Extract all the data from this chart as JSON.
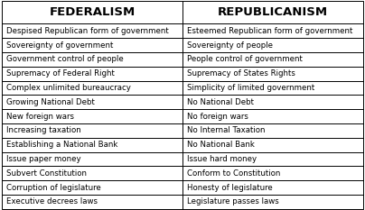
{
  "col1_header": "FEDERALISM",
  "col2_header": "REPUBLICANISM",
  "rows": [
    [
      "Despised Republican form of government",
      "Esteemed Republican form of government"
    ],
    [
      "Sovereignty of government",
      "Sovereignty of people"
    ],
    [
      "Government control of people",
      "People control of government"
    ],
    [
      "Supremacy of Federal Right",
      "Supremacy of States Rights"
    ],
    [
      "Complex unlimited bureaucracy",
      "Simplicity of limited government"
    ],
    [
      "Growing National Debt",
      "No National Debt"
    ],
    [
      "New foreign wars",
      "No foreign wars"
    ],
    [
      "Increasing taxation",
      "No Internal Taxation"
    ],
    [
      "Establishing a National Bank",
      "No National Bank"
    ],
    [
      "Issue paper money",
      "Issue hard money"
    ],
    [
      "Subvert Constitution",
      "Conform to Constitution"
    ],
    [
      "Corruption of legislature",
      "Honesty of legislature"
    ],
    [
      "Executive decrees laws",
      "Legislature passes laws"
    ]
  ],
  "background_color": "#ffffff",
  "border_color": "#000000",
  "text_color": "#000000",
  "header_fontsize": 9.5,
  "cell_fontsize": 6.2,
  "fig_width": 4.04,
  "fig_height": 2.33,
  "dpi": 100
}
